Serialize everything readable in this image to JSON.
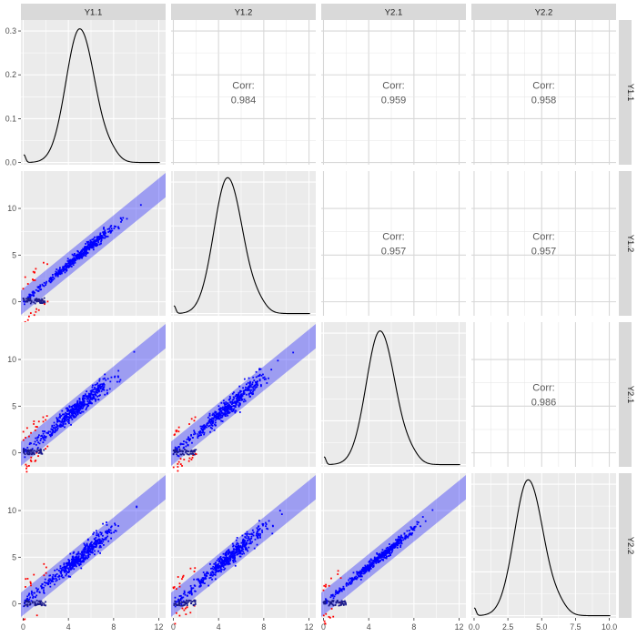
{
  "chart_data": {
    "type": "scatter",
    "layout": "pairs-matrix",
    "variables": [
      "Y1.1",
      "Y1.2",
      "Y2.1",
      "Y2.2"
    ],
    "x_ticks": [
      {
        "values": [
          0,
          4,
          8,
          12
        ],
        "labels": [
          "0",
          "4",
          "8",
          "12"
        ]
      },
      {
        "values": [
          0,
          4,
          8,
          12
        ],
        "labels": [
          "0",
          "4",
          "8",
          "12"
        ]
      },
      {
        "values": [
          0,
          4,
          8,
          12
        ],
        "labels": [
          "0",
          "4",
          "8",
          "12"
        ]
      },
      {
        "values": [
          0.0,
          2.5,
          5.0,
          7.5,
          10.0
        ],
        "labels": [
          "0.0",
          "2.5",
          "5.0",
          "7.5",
          "10.0"
        ]
      }
    ],
    "xlims": [
      [
        -0.2,
        12.6
      ],
      [
        -0.2,
        12.6
      ],
      [
        -0.2,
        12.6
      ],
      [
        -0.2,
        10.5
      ]
    ],
    "y_ticks_scatter": {
      "values": [
        0,
        5,
        10
      ],
      "labels": [
        "0",
        "5",
        "10"
      ]
    },
    "ylim_scatter": [
      -1.5,
      14
    ],
    "y_ticks_density": {
      "values": [
        0.0,
        0.1,
        0.2,
        0.3
      ],
      "labels": [
        "0.0",
        "0.1",
        "0.2",
        "0.3"
      ]
    },
    "ylim_density": [
      -0.005,
      0.325
    ],
    "correlations": [
      {
        "row": "Y1.1",
        "col": "Y1.2",
        "label": "Corr:",
        "value": "0.984"
      },
      {
        "row": "Y1.1",
        "col": "Y2.1",
        "label": "Corr:",
        "value": "0.959"
      },
      {
        "row": "Y1.1",
        "col": "Y2.2",
        "label": "Corr:",
        "value": "0.958"
      },
      {
        "row": "Y1.2",
        "col": "Y2.1",
        "label": "Corr:",
        "value": "0.957"
      },
      {
        "row": "Y1.2",
        "col": "Y2.2",
        "label": "Corr:",
        "value": "0.957"
      },
      {
        "row": "Y2.1",
        "col": "Y2.2",
        "label": "Corr:",
        "value": "0.986"
      }
    ],
    "density_peaks": [
      {
        "var": "Y1.1",
        "mode": 5.0,
        "peak": 0.305
      },
      {
        "var": "Y1.2",
        "mode": 4.8,
        "peak": 0.31
      },
      {
        "var": "Y2.1",
        "mode": 5.0,
        "peak": 0.305
      },
      {
        "var": "Y2.2",
        "mode": 4.0,
        "peak": 0.31
      }
    ],
    "band": {
      "x": [
        -0.2,
        12.6
      ],
      "upper": [
        1.2,
        13.8
      ],
      "lower": [
        -1.4,
        11.2
      ]
    },
    "colors": {
      "points_in_band": "#0000ff",
      "points_outside": "#ff0000",
      "band": "#0000ff",
      "density": "#000000",
      "panel": "#ebebeb",
      "strip": "#d9d9d9"
    }
  }
}
